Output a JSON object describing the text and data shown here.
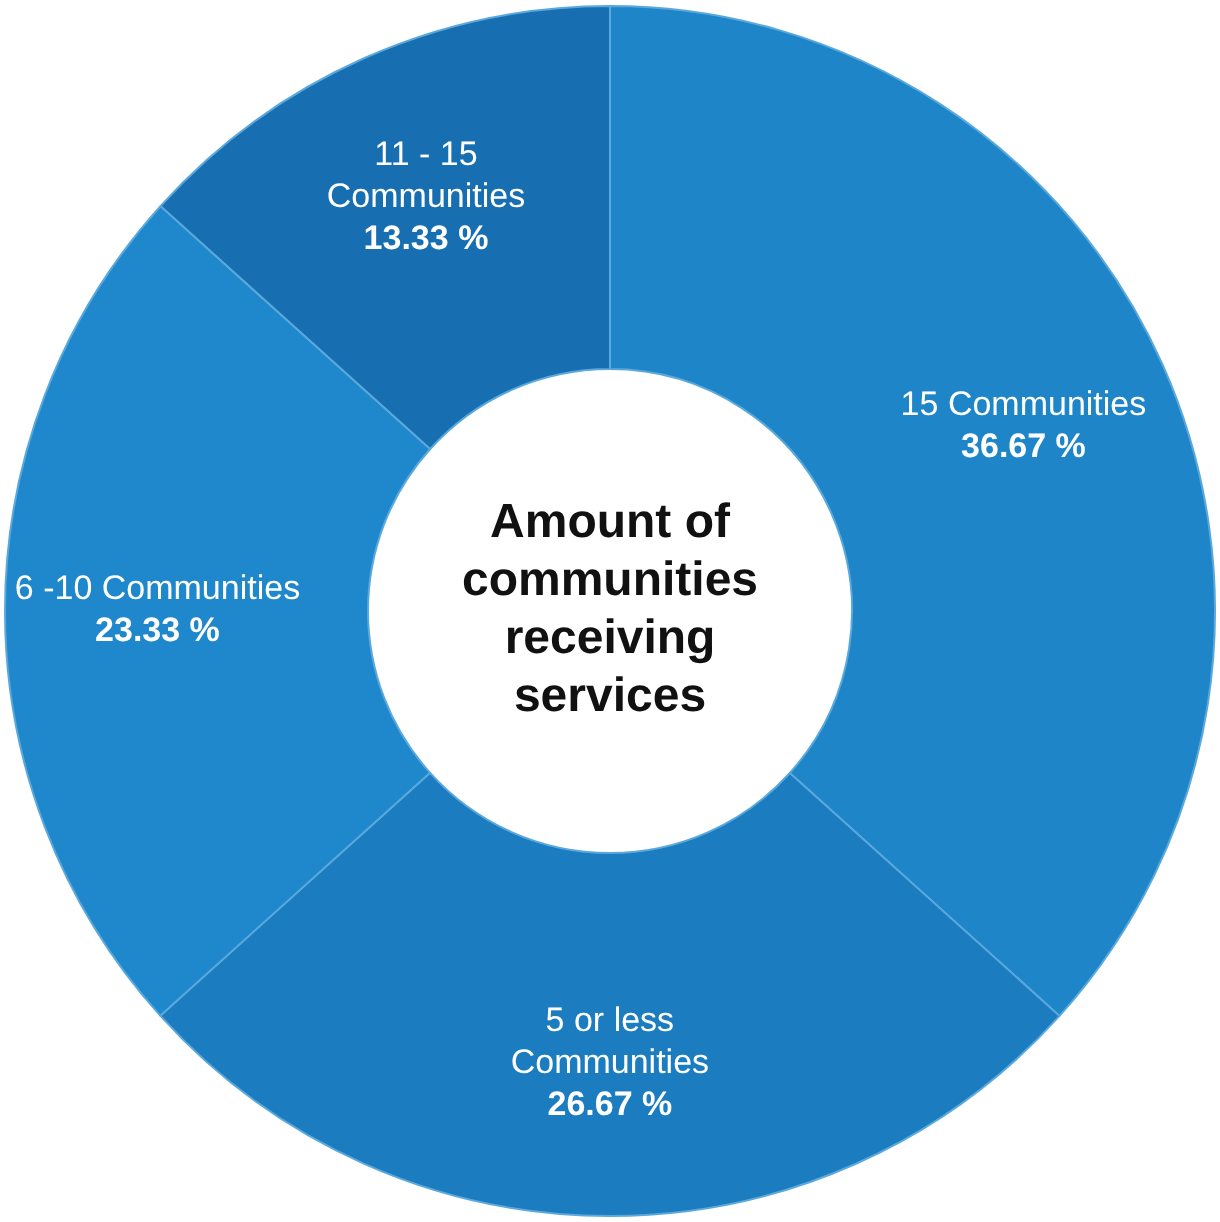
{
  "chart_data": {
    "type": "donut",
    "title": "Amount of communities receiving services",
    "categories": [
      "15 Communities",
      "5 or less Communities",
      "6 -10 Communities",
      "11 - 15 Communities"
    ],
    "values": [
      36.67,
      26.67,
      23.33,
      13.33
    ],
    "colors": [
      "#1e86c8",
      "#1b7cc0",
      "#1f88cc",
      "#176fb2"
    ],
    "value_labels": [
      "36.67 %",
      "26.67 %",
      "23.33 %",
      "13.33 %"
    ]
  }
}
